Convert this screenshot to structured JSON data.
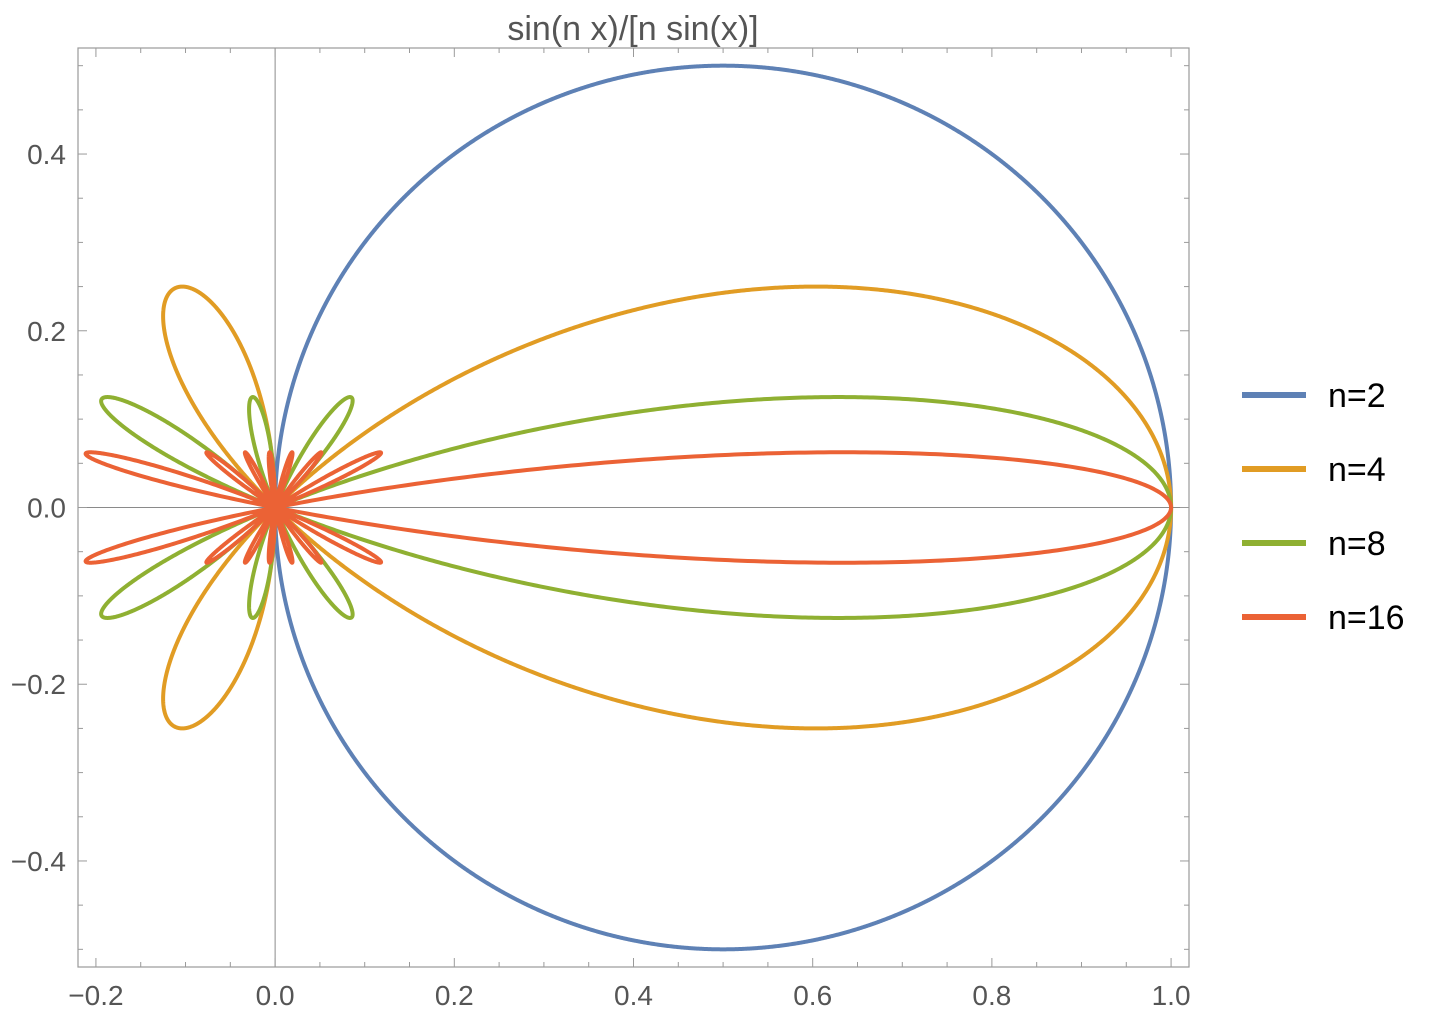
{
  "chart_data": {
    "type": "line",
    "plot_kind": "polar",
    "title": "sin(n x)/[n sin(x)]",
    "xlabel": "",
    "ylabel": "",
    "xlim": [
      -0.22,
      1.02
    ],
    "ylim": [
      -0.52,
      0.52
    ],
    "x_ticks": [
      -0.2,
      0.0,
      0.2,
      0.4,
      0.6,
      0.8,
      1.0
    ],
    "x_tick_labels": [
      "−0.2",
      "0.0",
      "0.2",
      "0.4",
      "0.6",
      "0.8",
      "1.0"
    ],
    "y_ticks": [
      -0.4,
      -0.2,
      0.0,
      0.2,
      0.4
    ],
    "y_tick_labels": [
      "−0.4",
      "−0.2",
      "0.0",
      "0.2",
      "0.4"
    ],
    "grid": false,
    "axes_through_origin": true,
    "legend_position": "right",
    "theta_range": [
      0,
      6.2832
    ],
    "r_function": "sin(n theta) / (n sin(theta))",
    "series": [
      {
        "name": "n=2",
        "n": 2,
        "color": "#5e81b5"
      },
      {
        "name": "n=4",
        "n": 4,
        "color": "#e19c24"
      },
      {
        "name": "n=8",
        "n": 8,
        "color": "#8fb032"
      },
      {
        "name": "n=16",
        "n": 16,
        "color": "#eb6235"
      }
    ]
  }
}
